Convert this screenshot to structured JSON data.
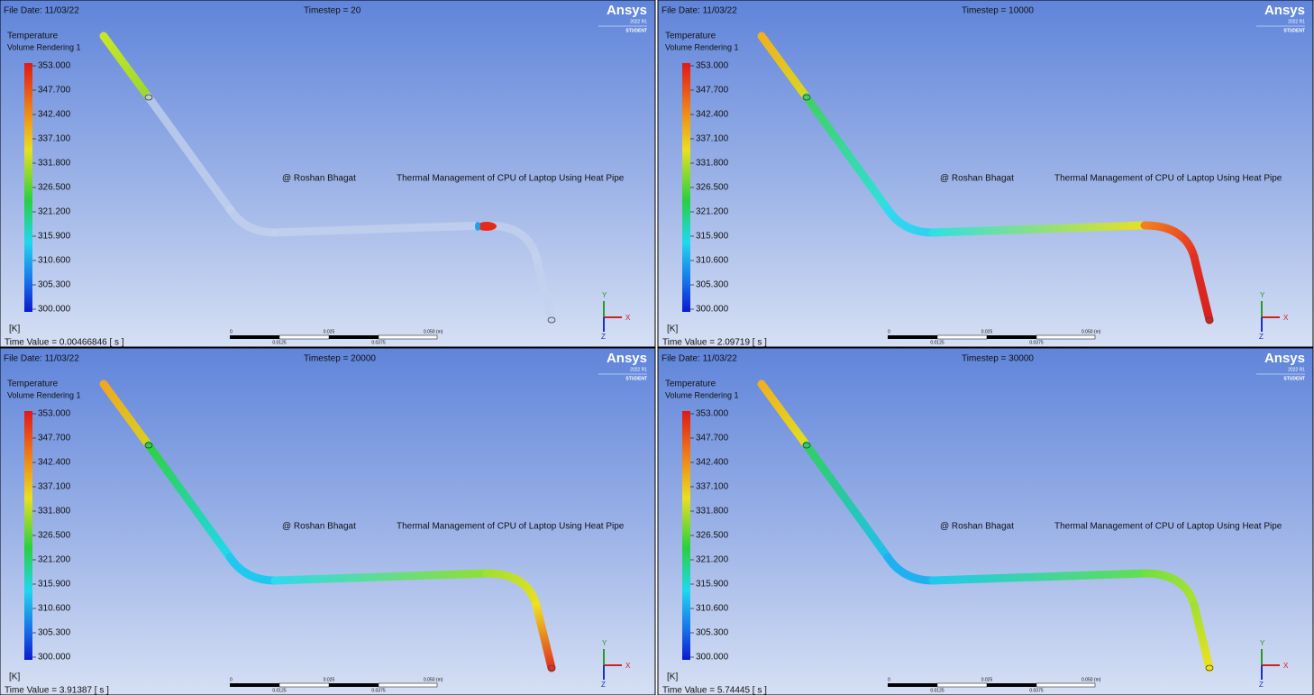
{
  "panels": [
    {
      "file_date": "File Date: 11/03/22",
      "timestep": "Timestep = 20",
      "time_value": "Time Value = 0.00466846 [ s ]"
    },
    {
      "file_date": "File Date: 11/03/22",
      "timestep": "Timestep = 10000",
      "time_value": "Time Value = 2.09719 [ s ]"
    },
    {
      "file_date": "File Date: 11/03/22",
      "timestep": "Timestep = 20000",
      "time_value": "Time Value = 3.91387 [ s ]"
    },
    {
      "file_date": "File Date: 11/03/22",
      "timestep": "Timestep = 30000",
      "time_value": "Time Value = 5.74445 [ s ]"
    }
  ],
  "shared": {
    "brand": "Ansys",
    "version": "2022 R1",
    "edition": "STUDENT",
    "legend_title": "Temperature",
    "legend_subtitle": "Volume Rendering 1",
    "legend_ticks": [
      "353.000",
      "347.700",
      "342.400",
      "337.100",
      "331.800",
      "326.500",
      "321.200",
      "315.900",
      "310.600",
      "305.300",
      "300.000"
    ],
    "unit": "[K]",
    "author": "@ Roshan Bhagat",
    "project": "Thermal Management of CPU of  Laptop Using Heat Pipe",
    "scale_labels": [
      "0",
      "0.025",
      "0.050 (m)"
    ],
    "scale_sublabels": [
      "0.0125",
      "0.0375"
    ],
    "axes": [
      "Y",
      "X",
      "Z"
    ]
  }
}
